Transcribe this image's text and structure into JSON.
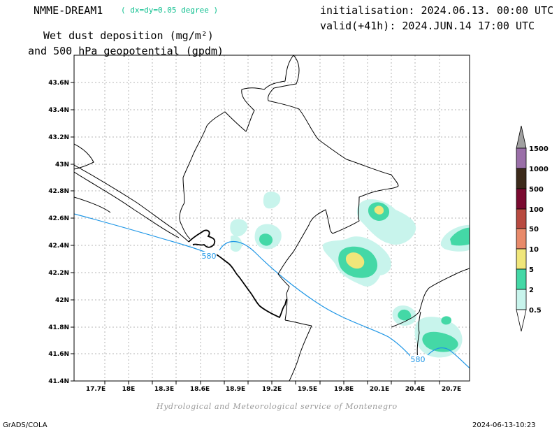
{
  "header": {
    "model_name": "NMME-DREAM1",
    "resolution": "( dx=dy=0.05 degree )",
    "initialisation": "initialisation: 2024.06.13. 00:00 UTC",
    "valid": "valid(+41h): 2024.JUN.14 17:00 UTC",
    "title_line1": "Wet dust deposition (mg/m²)",
    "title_line2": "and 500 hPa geopotential (gpdm)"
  },
  "footer": {
    "credit": "Hydrological and Meteorological service of Montenegro",
    "software": "GrADS/COLA",
    "timestamp": "2024-06-13-10:23"
  },
  "map": {
    "lon_ticks": [
      "17.7E",
      "18E",
      "18.3E",
      "18.6E",
      "18.9E",
      "19.2E",
      "19.5E",
      "19.8E",
      "20.1E",
      "20.4E",
      "20.7E"
    ],
    "lat_ticks": [
      "43.6N",
      "43.4N",
      "43.2N",
      "43N",
      "42.8N",
      "42.6N",
      "42.4N",
      "42.2N",
      "42N",
      "41.8N",
      "41.6N",
      "41.4N"
    ],
    "contour_labels": [
      "580",
      "580"
    ],
    "contour_color": "#1e96e6"
  },
  "colorbar": {
    "levels": [
      "1500",
      "1000",
      "500",
      "100",
      "50",
      "10",
      "5",
      "2",
      "0.5"
    ],
    "colors": [
      "#a0a0a0",
      "#9a6fa8",
      "#3c2a1a",
      "#7a0a30",
      "#b84a40",
      "#e88a6a",
      "#f0e67a",
      "#44d8a6",
      "#c8f4ec"
    ]
  }
}
